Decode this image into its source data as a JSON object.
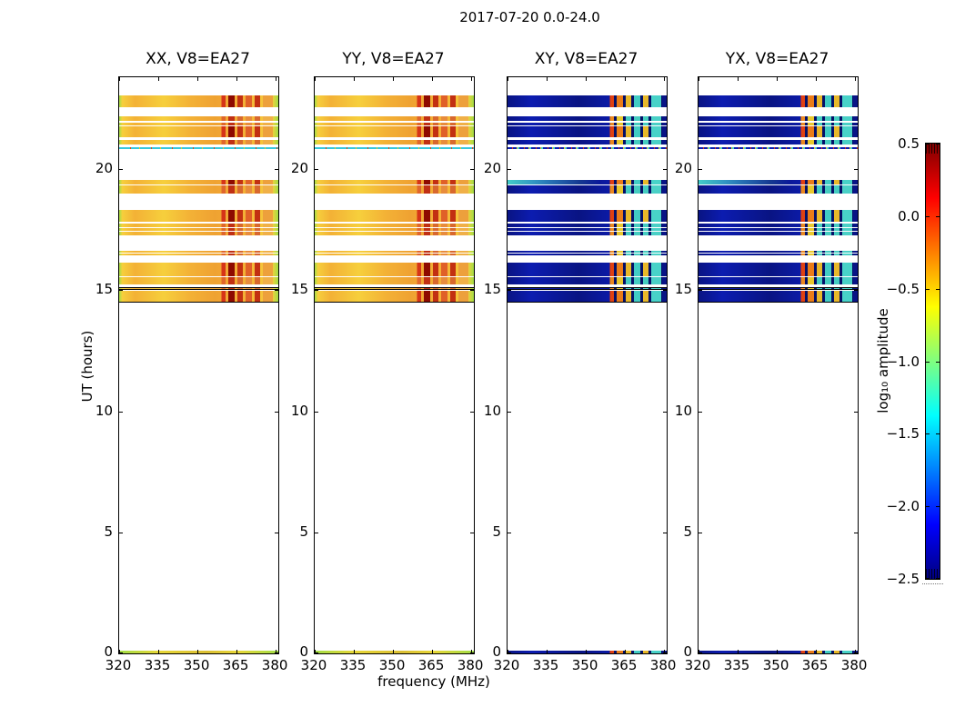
{
  "figure": {
    "title": "2017-07-20 0.0-24.0",
    "background": "#ffffff",
    "text_color": "#000000"
  },
  "axes": {
    "xlabel": "frequency (MHz)",
    "ylabel": "UT (hours)",
    "x_tick_labels": [
      "320",
      "335",
      "350",
      "365",
      "380"
    ],
    "x_tick_values": [
      320,
      335,
      350,
      365,
      380
    ],
    "y_tick_labels": [
      "0",
      "5",
      "10",
      "15",
      "20"
    ],
    "y_tick_values": [
      0,
      5,
      10,
      15,
      20
    ]
  },
  "panels": [
    {
      "title": "XX, V8=EA27",
      "polarization": "XX",
      "group": "auto"
    },
    {
      "title": "YY, V8=EA27",
      "polarization": "YY",
      "group": "auto"
    },
    {
      "title": "XY, V8=EA27",
      "polarization": "XY",
      "group": "cross"
    },
    {
      "title": "YX, V8=EA27",
      "polarization": "YX",
      "group": "cross"
    }
  ],
  "colorbar": {
    "label": "log₁₀ amplitude",
    "tick_labels": [
      "0.5",
      "0.0",
      "−0.5",
      "−1.0",
      "−1.5",
      "−2.0",
      "−2.5"
    ],
    "tick_values": [
      0.5,
      0,
      -0.5,
      -1,
      -1.5,
      -2,
      -2.5
    ],
    "vmin": -2.5,
    "vmax": 0.5,
    "cmap": "jet",
    "jet_stops_top_to_bottom": [
      "#7f0000",
      "#ff0000",
      "#ffff00",
      "#00ffff",
      "#0000ff",
      "#00007f"
    ]
  },
  "palette": {
    "auto": {
      "edge": "#a2de46",
      "body_light": "#f6cf3c",
      "body_mid": "#f3b136",
      "body_deep": "#efa232",
      "stripes_strong": {
        "s1": "#d63418",
        "s2": "#8e0a00",
        "s3": "#c23012",
        "s4": "#e06028",
        "s5": "#eda03c"
      },
      "stripes_normal": {
        "s1": "#e0662c",
        "s2": "#c03014",
        "s3": "#d8682e",
        "s4": "#e88c3c",
        "s5": "#f0b048"
      },
      "rainbow_base": "#38c8dc",
      "rainbow_fleck1": "#e84818",
      "rainbow_fleck2": "#e8c828",
      "day_edge1": "#e8d838",
      "day_edge2": "#dcc034"
    },
    "cross": {
      "body_dark": "#091483",
      "body_mid": "#0c1cb0",
      "gap_dark": "#051068",
      "cyan": "#46d2c8",
      "fleck_red": "#d83418",
      "fleck_yellow": "#e8c828",
      "stripes_strong": {
        "s1": "#e04012",
        "s2": "#ea7c18",
        "s3": "#e8b82a",
        "s4": "#42ccc4",
        "s5": "#48d2c8"
      },
      "stripes_normal": {
        "s1": "#ea8820",
        "s2": "#e8c82e",
        "s3": "#46ccc0",
        "s4": "#46ccc0",
        "s5": "#4ad0c6"
      },
      "cyan_overlay_a": "rgba(70,214,205,0.95)",
      "cyan_overlay_b": "rgba(70,214,205,0.45)"
    }
  },
  "chart_data": {
    "type": "heatmap",
    "title": "2017-07-20 0.0-24.0",
    "xlabel": "frequency (MHz)",
    "ylabel": "UT (hours)",
    "xlim": [
      320,
      381
    ],
    "ylim": [
      0,
      23.8
    ],
    "x_ticks": [
      320,
      335,
      350,
      365,
      380
    ],
    "y_ticks": [
      0,
      5,
      10,
      15,
      20
    ],
    "grid": false,
    "colorbar": {
      "label": "log10 amplitude",
      "vmin": -2.5,
      "vmax": 0.5,
      "ticks": [
        0.5,
        0,
        -0.5,
        -1,
        -1.5,
        -2,
        -2.5
      ],
      "cmap": "jet",
      "position": "right"
    },
    "panels": [
      {
        "title": "XX, V8=EA27",
        "polarization": "XX",
        "body_level_log10": -0.35
      },
      {
        "title": "YY, V8=EA27",
        "polarization": "YY",
        "body_level_log10": -0.35
      },
      {
        "title": "XY, V8=EA27",
        "polarization": "XY",
        "body_level_log10": -2.3
      },
      {
        "title": "YX, V8=EA27",
        "polarization": "YX",
        "body_level_log10": -2.3
      }
    ],
    "rfi_frequency_range_mhz": [
      360,
      379
    ],
    "rfi_peak_level_log10": 0.5,
    "observation_bands_ut": [
      {
        "ut_start": 22.55,
        "ut_end": 23.05,
        "intensity": "strong"
      },
      {
        "ut_start": 21.99,
        "ut_end": 22.18,
        "intensity": "normal"
      },
      {
        "ut_start": 21.8,
        "ut_end": 21.92,
        "intensity": "normal"
      },
      {
        "ut_start": 21.32,
        "ut_end": 21.77,
        "intensity": "strong"
      },
      {
        "ut_start": 21.02,
        "ut_end": 21.2,
        "intensity": "normal"
      },
      {
        "ut_start": 20.83,
        "ut_end": 20.91,
        "intensity": "rainbow_line"
      },
      {
        "ut_start": 19.36,
        "ut_end": 19.55,
        "intensity": "strong",
        "cyan_left": true
      },
      {
        "ut_start": 18.99,
        "ut_end": 19.33,
        "intensity": "normal"
      },
      {
        "ut_start": 17.83,
        "ut_end": 18.31,
        "intensity": "strong"
      },
      {
        "ut_start": 17.62,
        "ut_end": 17.75,
        "intensity": "normal"
      },
      {
        "ut_start": 17.45,
        "ut_end": 17.58,
        "intensity": "normal"
      },
      {
        "ut_start": 17.26,
        "ut_end": 17.42,
        "intensity": "normal"
      },
      {
        "ut_start": 16.55,
        "ut_end": 16.63,
        "intensity": "normal"
      },
      {
        "ut_start": 16.44,
        "ut_end": 16.5,
        "intensity": "normal"
      },
      {
        "ut_start": 15.57,
        "ut_end": 16.14,
        "intensity": "strong"
      },
      {
        "ut_start": 15.24,
        "ut_end": 15.54,
        "intensity": "normal"
      },
      {
        "ut_start": 15.01,
        "ut_end": 15.12,
        "intensity": "normal",
        "black_line": "both"
      },
      {
        "ut_start": 14.49,
        "ut_end": 14.97,
        "intensity": "strong",
        "black_line": "bottom"
      },
      {
        "ut_start": 0.0,
        "ut_end": 0.1,
        "intensity": "day_edge"
      }
    ]
  }
}
